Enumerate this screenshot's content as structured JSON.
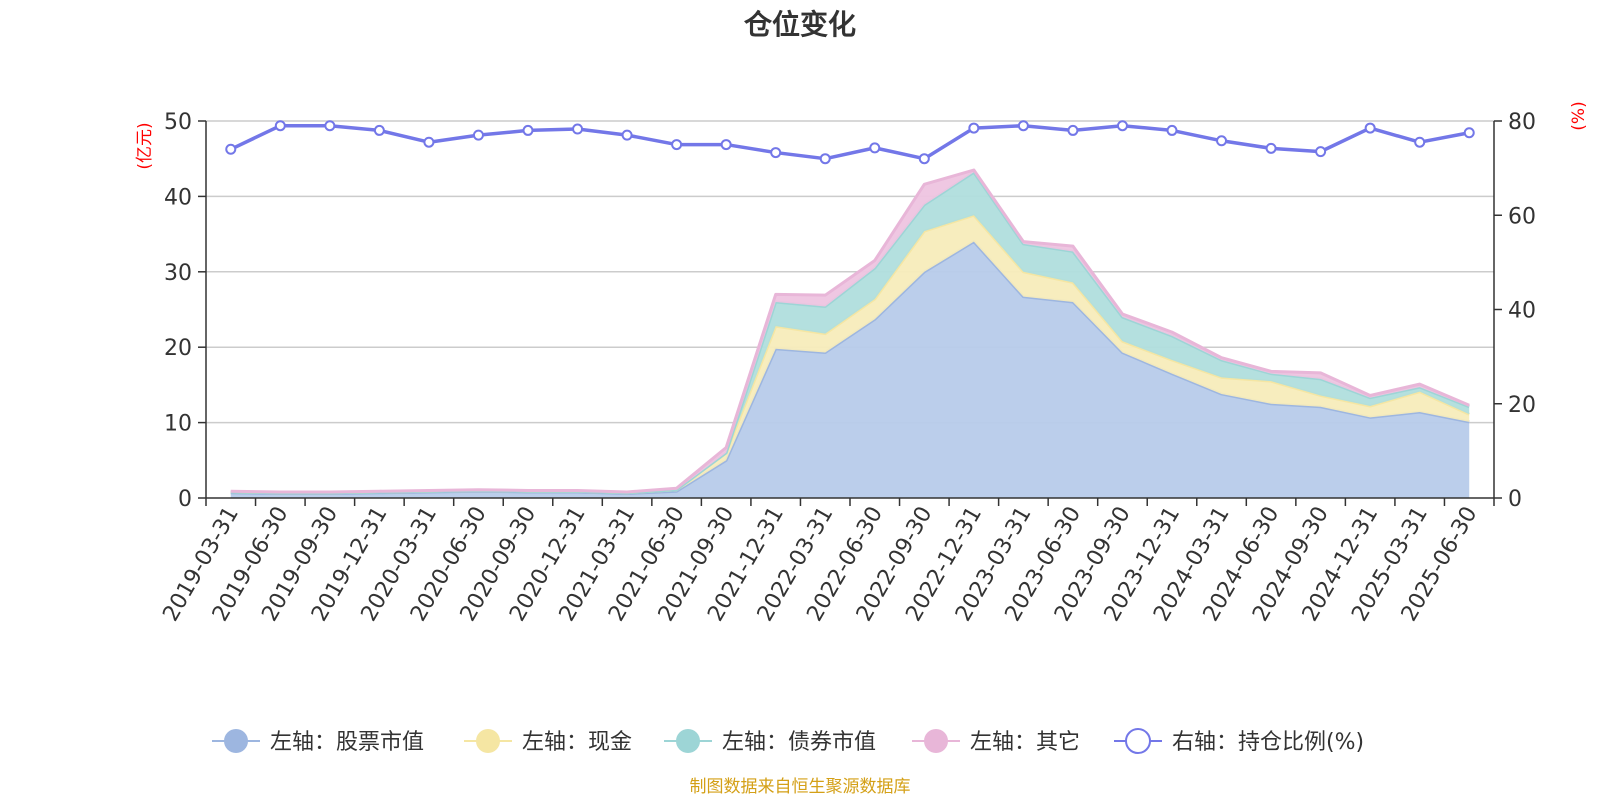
{
  "chart_data": {
    "type": "area",
    "title": "仓位变化",
    "left_unit": "(亿元)",
    "right_unit": "(%)",
    "categories": [
      "2019-03-31",
      "2019-06-30",
      "2019-09-30",
      "2019-12-31",
      "2020-03-31",
      "2020-06-30",
      "2020-09-30",
      "2020-12-31",
      "2021-03-31",
      "2021-06-30",
      "2021-09-30",
      "2021-12-31",
      "2022-03-31",
      "2022-06-30",
      "2022-09-30",
      "2022-12-31",
      "2023-03-31",
      "2023-06-30",
      "2023-09-30",
      "2023-12-31",
      "2024-03-31",
      "2024-06-30",
      "2024-09-30",
      "2024-12-31",
      "2025-03-31",
      "2025-06-30"
    ],
    "left_axis": {
      "min": 0,
      "max": 50,
      "ticks": [
        "0",
        "10",
        "20",
        "30",
        "40",
        "50"
      ]
    },
    "right_axis": {
      "min": 0,
      "max": 80,
      "ticks": [
        "0",
        "20",
        "40",
        "60",
        "80"
      ]
    },
    "stacked": true,
    "series": [
      {
        "name": "左轴：股票市值",
        "axis": "left",
        "color": "#9db6e0",
        "fill": "#b7cbea",
        "values": [
          0.7,
          0.6,
          0.6,
          0.7,
          0.8,
          0.9,
          0.8,
          0.8,
          0.6,
          0.9,
          5.0,
          19.8,
          19.3,
          23.7,
          30.0,
          34.0,
          26.7,
          26.0,
          19.3,
          16.5,
          13.8,
          12.5,
          12.1,
          10.7,
          11.4,
          10.1
        ]
      },
      {
        "name": "左轴：现金",
        "axis": "left",
        "color": "#f5e6a3",
        "fill": "#f7ecbb",
        "values": [
          0.1,
          0.1,
          0.1,
          0.1,
          0.1,
          0.1,
          0.1,
          0.1,
          0.1,
          0.2,
          1.0,
          3.0,
          2.5,
          2.7,
          5.4,
          3.5,
          3.3,
          2.6,
          1.5,
          1.8,
          2.2,
          3.0,
          1.5,
          1.5,
          2.7,
          1.0
        ]
      },
      {
        "name": "左轴：债券市值",
        "axis": "left",
        "color": "#9dd5d6",
        "fill": "#b0dedd",
        "values": [
          0.0,
          0.0,
          0.0,
          0.0,
          0.0,
          0.0,
          0.0,
          0.0,
          0.0,
          0.0,
          0.0,
          3.2,
          3.6,
          4.1,
          3.5,
          5.7,
          3.7,
          4.1,
          3.2,
          3.2,
          2.3,
          1.0,
          2.2,
          1.1,
          0.6,
          1.0
        ]
      },
      {
        "name": "左轴：其它",
        "axis": "left",
        "color": "#e8b6d8",
        "fill": "#eec4e0",
        "values": [
          0.1,
          0.1,
          0.1,
          0.1,
          0.1,
          0.1,
          0.1,
          0.1,
          0.1,
          0.2,
          0.7,
          1.0,
          1.5,
          1.0,
          2.7,
          0.3,
          0.3,
          0.7,
          0.4,
          0.5,
          0.3,
          0.3,
          0.8,
          0.3,
          0.4,
          0.2
        ]
      },
      {
        "name": "右轴：持仓比例(%)",
        "axis": "right",
        "color": "#7377e8",
        "type": "line",
        "values": [
          74.0,
          79.0,
          79.0,
          78.0,
          75.5,
          77.0,
          78.0,
          78.3,
          77.0,
          75.0,
          75.0,
          73.3,
          72.0,
          74.3,
          72.0,
          78.5,
          79.0,
          78.0,
          79.0,
          78.0,
          75.8,
          74.2,
          73.5,
          78.5,
          75.5,
          77.5
        ]
      }
    ],
    "grid": true,
    "legend_position": "bottom",
    "source_note": "制图数据来自恒生聚源数据库"
  }
}
